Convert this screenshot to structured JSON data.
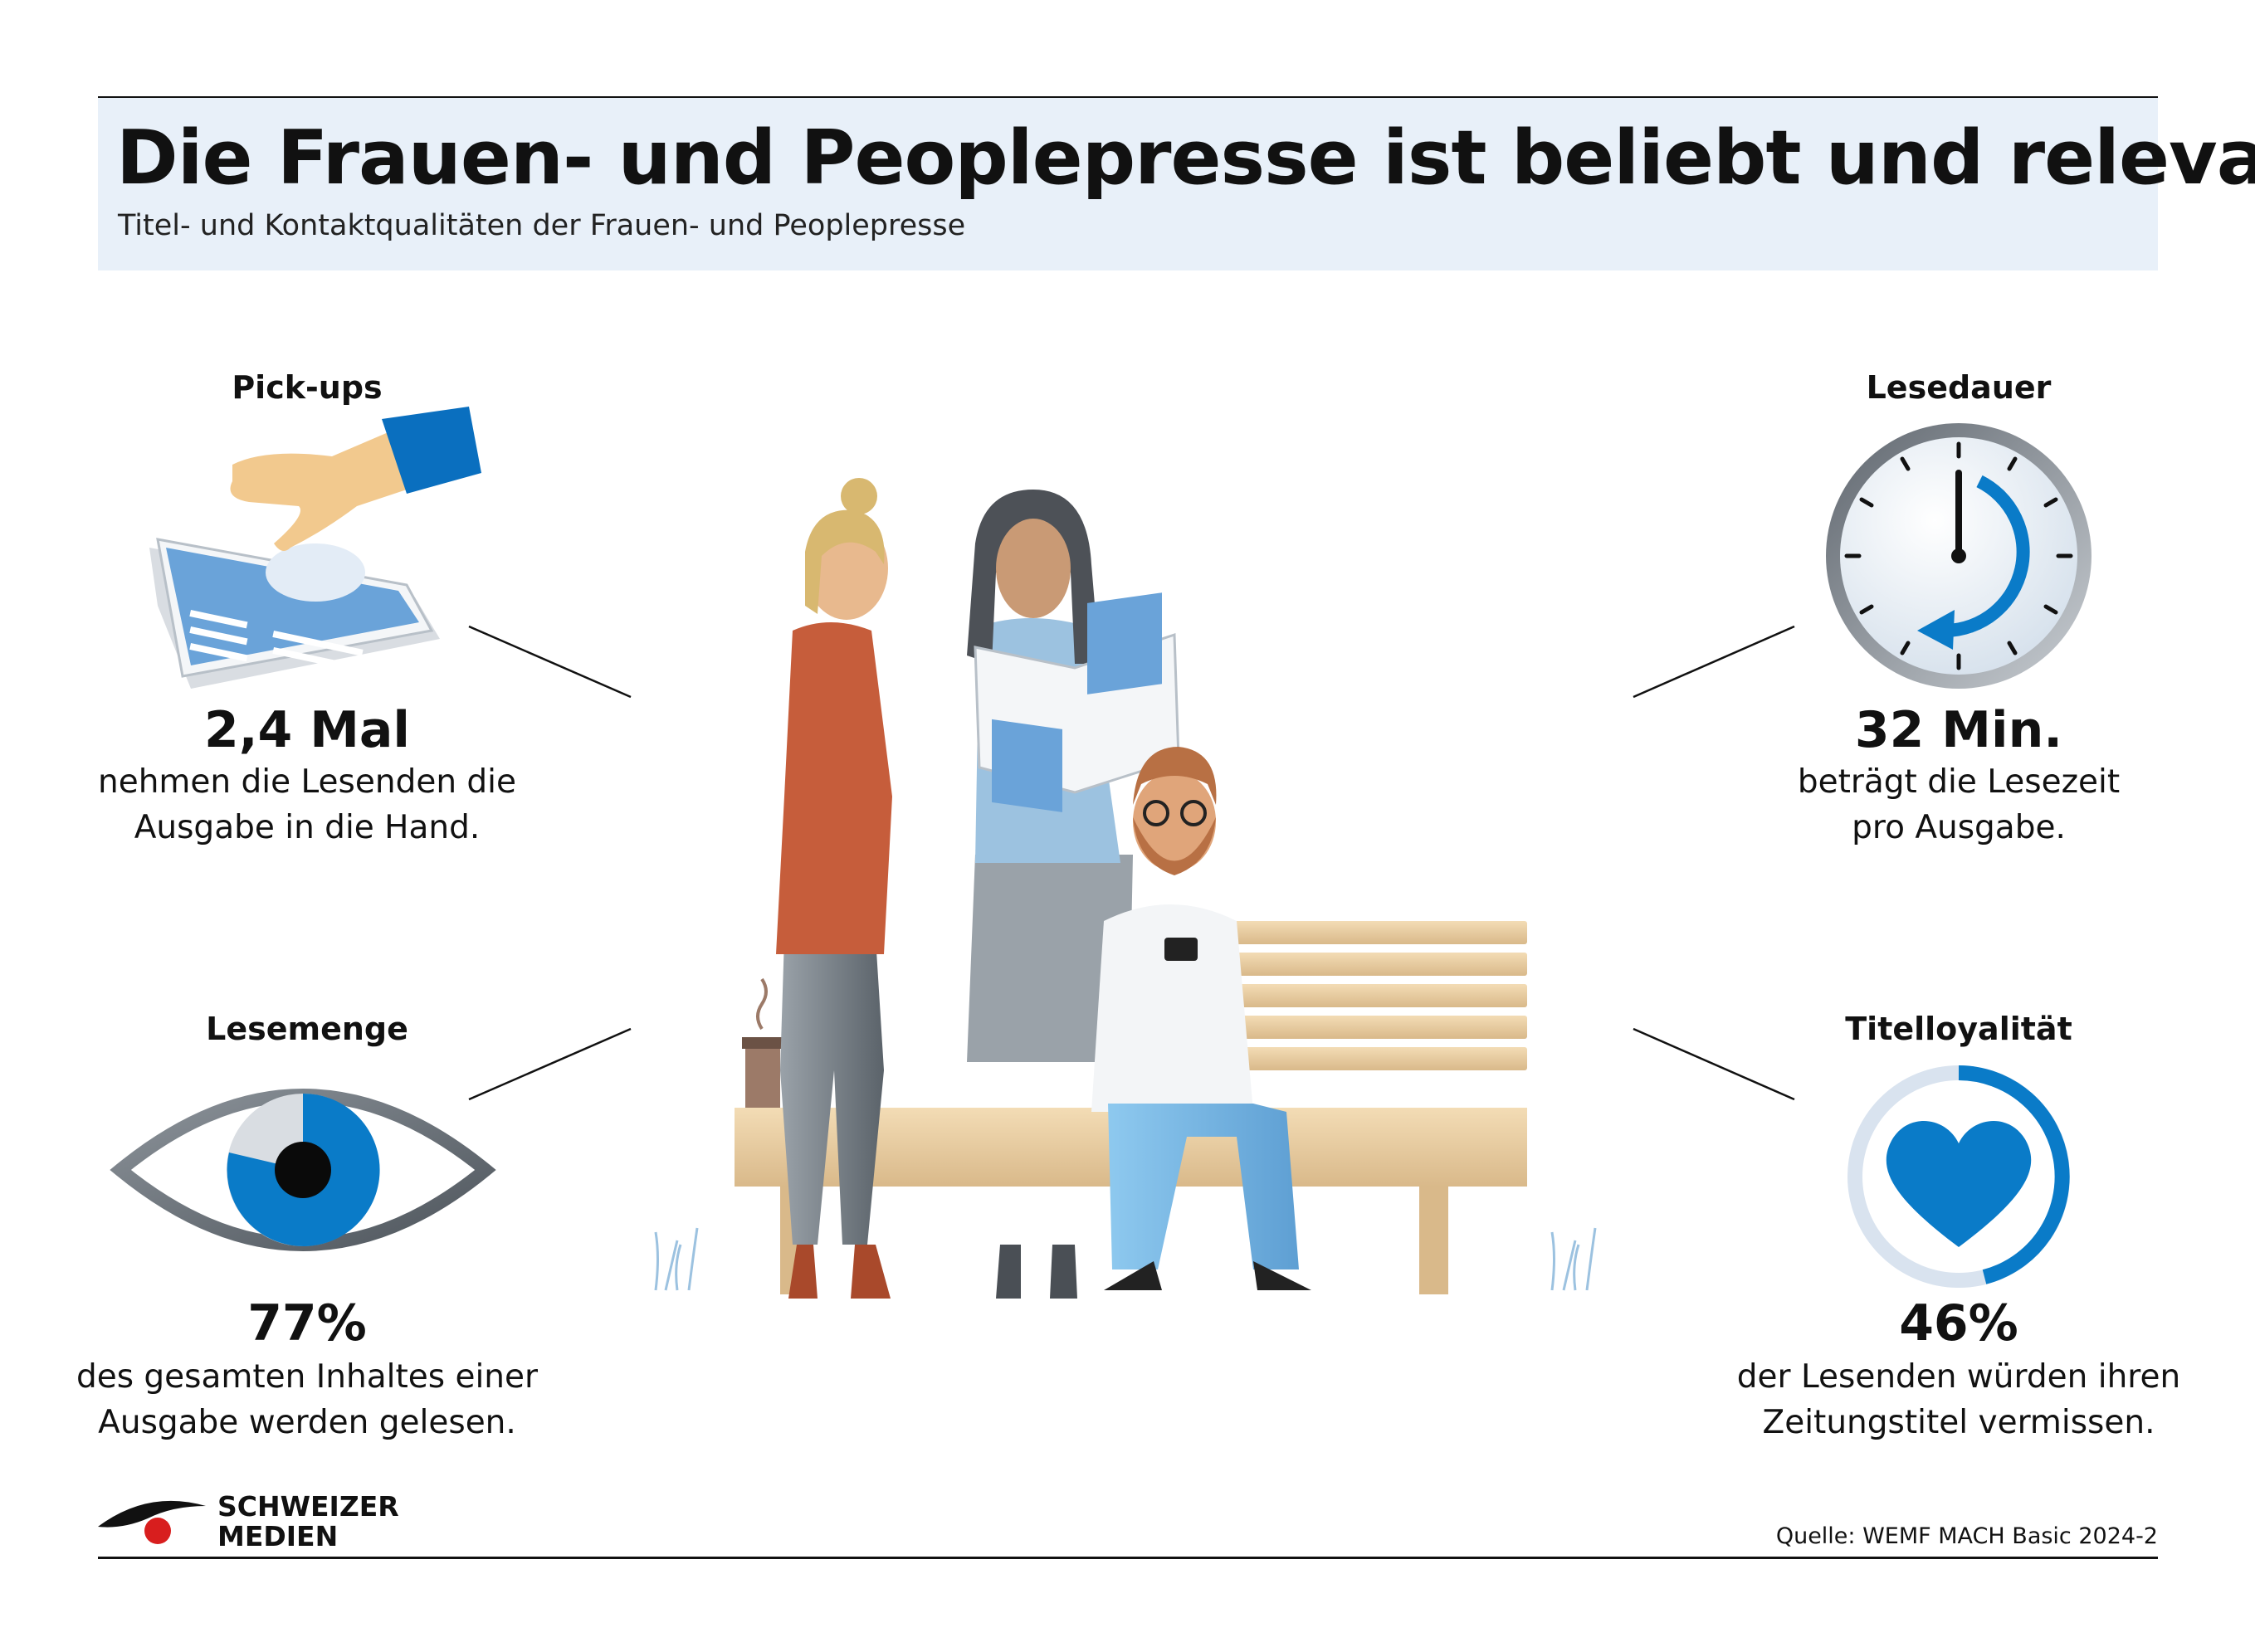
{
  "header": {
    "title": "Die Frauen- und Peoplepresse ist beliebt und relevant",
    "subtitle": "Titel- und Kontaktqualitäten der Frauen- und Peoplepresse"
  },
  "stats": {
    "pickups": {
      "label": "Pick-ups",
      "value": "2,4 Mal",
      "description_line1": "nehmen die Lesenden die",
      "description_line2": "Ausgabe in die Hand.",
      "icon": "hand-picking-newspaper-icon"
    },
    "lesedauer": {
      "label": "Lesedauer",
      "value": "32 Min.",
      "description_line1": "beträgt die Lesezeit",
      "description_line2": "pro Ausgabe.",
      "icon": "clock-icon"
    },
    "lesemenge": {
      "label": "Lesemenge",
      "value": "77%",
      "description_line1": "des gesamten Inhaltes einer",
      "description_line2": "Ausgabe werden gelesen.",
      "icon": "eye-icon",
      "share": 0.77
    },
    "titelloyalitaet": {
      "label": "Titelloyalität",
      "value": "46%",
      "description_line1": "der Lesenden würden ihren",
      "description_line2": "Zeitungstitel vermissen.",
      "icon": "heart-ring-icon",
      "share": 0.46
    }
  },
  "footer": {
    "logo_line1": "SCHWEIZER",
    "logo_line2": "MEDIEN",
    "source": "Quelle: WEMF MACH Basic 2024-2"
  },
  "colors": {
    "accent_blue": "#0a7bc8",
    "header_bg": "#e8f0f9"
  }
}
